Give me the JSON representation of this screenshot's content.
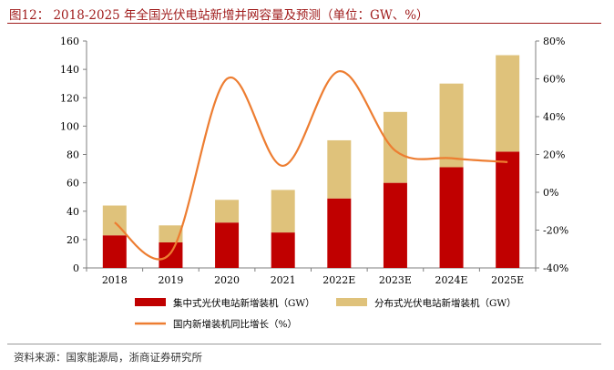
{
  "header": {
    "title": "图12：  2018-2025 年全国光伏电站新增并网容量及预测（单位：GW、%）"
  },
  "footer": {
    "source": "资料来源：国家能源局，浙商证券研究所"
  },
  "colors": {
    "centralized": "#c00000",
    "distributed": "#dfc27b",
    "growth_line": "#ed7d31",
    "title": "#a01c1c"
  },
  "chart_data": {
    "type": "bar",
    "stacked": true,
    "categories": [
      "2018",
      "2019",
      "2020",
      "2021",
      "2022E",
      "2023E",
      "2024E",
      "2025E"
    ],
    "series": [
      {
        "name": "集中式光伏电站新增装机（GW）",
        "type": "bar",
        "axis": "left",
        "values": [
          23,
          18,
          32,
          25,
          49,
          60,
          71,
          82
        ]
      },
      {
        "name": "分布式光伏电站新增装机（GW）",
        "type": "bar",
        "axis": "left",
        "values": [
          21,
          12,
          16,
          30,
          41,
          50,
          59,
          68
        ]
      },
      {
        "name": "国内新增装机同比增长（%）",
        "type": "line",
        "axis": "right",
        "values": [
          -16,
          -32,
          60,
          14,
          64,
          22,
          18,
          16
        ]
      }
    ],
    "y_left": {
      "min": 0,
      "max": 160,
      "ticks": [
        0,
        20,
        40,
        60,
        80,
        100,
        120,
        140,
        160
      ]
    },
    "y_right": {
      "min": -40,
      "max": 80,
      "ticks": [
        "-40%",
        "-20%",
        "0%",
        "20%",
        "40%",
        "60%",
        "80%"
      ]
    },
    "legend_position": "bottom",
    "grid": false
  }
}
